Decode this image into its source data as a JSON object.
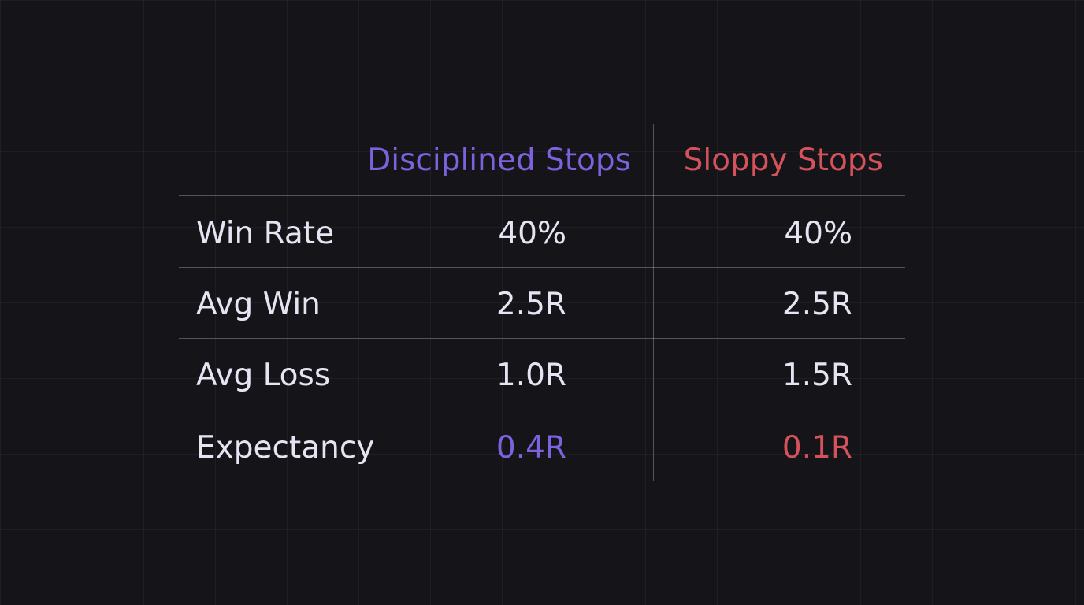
{
  "colors": {
    "background": "#151419",
    "disciplined_accent": "#7c62dc",
    "sloppy_accent": "#d4525c",
    "text": "#e6e4f2"
  },
  "table": {
    "columns": [
      {
        "label": "Disciplined Stops",
        "color": "#7c62dc"
      },
      {
        "label": "Sloppy Stops",
        "color": "#d4525c"
      }
    ],
    "rows": [
      {
        "label": "Win Rate",
        "values": [
          "40%",
          "40%"
        ]
      },
      {
        "label": "Avg Win",
        "values": [
          "2.5R",
          "2.5R"
        ]
      },
      {
        "label": "Avg Loss",
        "values": [
          "1.0R",
          "1.5R"
        ]
      },
      {
        "label": "Expectancy",
        "values": [
          "0.4R",
          "0.1R"
        ],
        "highlight": true
      }
    ]
  }
}
